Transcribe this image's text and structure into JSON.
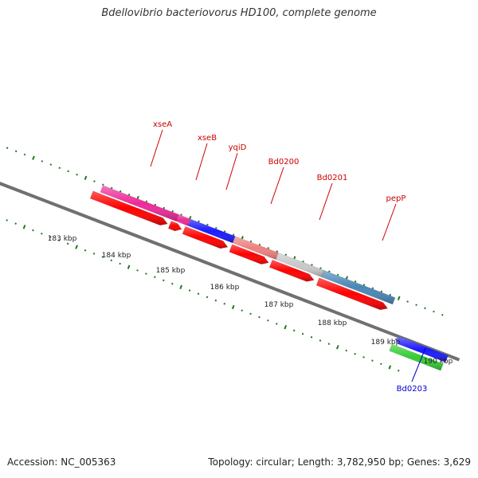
{
  "title": "Bdellovibrio bacteriovorus HD100, complete genome",
  "accession": "Accession: NC_005363",
  "summary": "Topology: circular; Length: 3,782,950 bp; Genes: 3,629",
  "colors": {
    "backbone": "#808080",
    "tick_mark": "#1f7a1f",
    "label_red": "#cc0000",
    "label_blue": "#0000cc"
  },
  "scale_labels": [
    "183 kbp",
    "184 kbp",
    "185 kbp",
    "186 kbp",
    "187 kbp",
    "188 kbp",
    "189 kbp",
    "190 kbp"
  ],
  "features": [
    {
      "name": "",
      "kind": "cog",
      "color": "#1a1aff"
    },
    {
      "name": "",
      "kind": "cog",
      "color": "#c8c8c8"
    },
    {
      "name": "xseA",
      "kind": "cog",
      "color": "#ee2a9a"
    },
    {
      "name": "xseB",
      "kind": "cog",
      "color": "#ee2a9a"
    },
    {
      "name": "yqiD",
      "kind": "cog",
      "color": "#1a1aff"
    },
    {
      "name": "Bd0200",
      "kind": "cog",
      "color": "#f08080"
    },
    {
      "name": "Bd0201",
      "kind": "cog",
      "color": "#c8c8c8"
    },
    {
      "name": "pepP",
      "kind": "cog",
      "color": "#4a86b8"
    },
    {
      "name": "",
      "kind": "cds",
      "color": "#ff0000"
    },
    {
      "name": "",
      "kind": "cds",
      "color": "#ff0000"
    },
    {
      "name": "",
      "kind": "cds",
      "color": "#ff0000"
    },
    {
      "name": "",
      "kind": "cds",
      "color": "#ff0000"
    },
    {
      "name": "",
      "kind": "cds",
      "color": "#ff0000"
    },
    {
      "name": "",
      "kind": "cds",
      "color": "#ff0000"
    },
    {
      "name": "",
      "kind": "cog",
      "color": "#1a1aff"
    },
    {
      "name": "Bd0203",
      "kind": "cog",
      "color": "#33cc33"
    }
  ]
}
